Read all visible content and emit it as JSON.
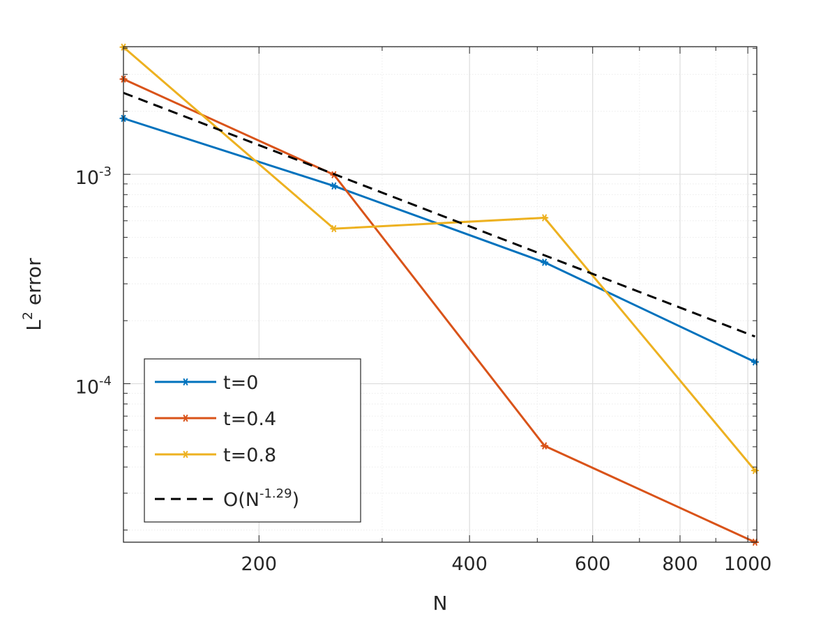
{
  "chart_data": {
    "type": "line",
    "scale": {
      "x": "log",
      "y": "log"
    },
    "title": "",
    "xlabel": "N",
    "ylabel": {
      "base": "L",
      "sup": "2",
      "rest": " error"
    },
    "xlim": [
      128,
      1030
    ],
    "ylim": [
      1.75e-05,
      0.00407
    ],
    "grid": true,
    "minor_grid": true,
    "legend_position": "bottom-left",
    "x_ticks": [
      {
        "value": 200,
        "label": "200"
      },
      {
        "value": 400,
        "label": "400"
      },
      {
        "value": 600,
        "label": "600"
      },
      {
        "value": 800,
        "label": "800"
      },
      {
        "value": 1000,
        "label": "1000"
      }
    ],
    "y_ticks": [
      {
        "value": 0.001,
        "base": "10",
        "exp": "-3"
      },
      {
        "value": 0.0001,
        "base": "10",
        "exp": "-4"
      }
    ],
    "series": [
      {
        "name": "t=0",
        "color": "#0072BD",
        "dashed": false,
        "markers": true,
        "x": [
          128,
          256,
          512,
          1024
        ],
        "y": [
          0.00185,
          0.00088,
          0.00038,
          0.000127
        ]
      },
      {
        "name": "t=0.4",
        "color": "#D95319",
        "dashed": false,
        "markers": true,
        "x": [
          128,
          256,
          512,
          1024
        ],
        "y": [
          0.00285,
          0.000995,
          5.05e-05,
          1.75e-05
        ]
      },
      {
        "name": "t=0.8",
        "color": "#EDB120",
        "dashed": false,
        "markers": true,
        "x": [
          128,
          256,
          512,
          1024
        ],
        "y": [
          0.00405,
          0.00055,
          0.00062,
          3.85e-05
        ]
      },
      {
        "name": "O(N^-1.29)",
        "legend_base": "O(N",
        "legend_sup": "-1.29",
        "legend_close": ")",
        "color": "#000000",
        "dashed": true,
        "markers": false,
        "x": [
          128,
          1024
        ],
        "y": [
          0.00245,
          0.000168
        ]
      }
    ]
  }
}
